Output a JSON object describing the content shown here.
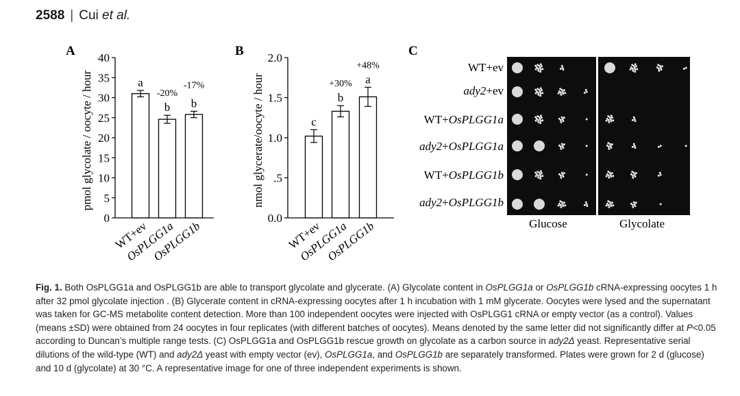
{
  "header": {
    "page_number": "2588",
    "separator": "|",
    "author": "Cui ",
    "etal": "et al."
  },
  "chart_data": [
    {
      "panel": "A",
      "type": "bar",
      "categories": [
        "WT+ev",
        "OsPLGG1a",
        "OsPLGG1b"
      ],
      "values": [
        31.0,
        24.6,
        25.8
      ],
      "errors": [
        0.8,
        1.0,
        0.8
      ],
      "letters": [
        "a",
        "b",
        "b"
      ],
      "percent_labels": [
        "",
        "-20%",
        "-17%"
      ],
      "ylabel": "pmol glycolate / oocyte / hour",
      "ylim": [
        0,
        40
      ],
      "yticks": [
        "0",
        "5",
        "10",
        "15",
        "20",
        "25",
        "30",
        "35",
        "40"
      ]
    },
    {
      "panel": "B",
      "type": "bar",
      "categories": [
        "WT+ev",
        "OsPLGG1a",
        "OsPLGG1b"
      ],
      "values": [
        1.02,
        1.33,
        1.51
      ],
      "errors": [
        0.08,
        0.07,
        0.12
      ],
      "letters": [
        "c",
        "b",
        "a"
      ],
      "percent_labels": [
        "",
        "+30%",
        "+48%"
      ],
      "ylabel": "nmol glycerate/oocyte / hour",
      "ylim": [
        0,
        2.0
      ],
      "yticks": [
        "0.0",
        ".5",
        "1.0",
        "1.5",
        "2.0"
      ]
    }
  ],
  "panel_c": {
    "label": "C",
    "rows": [
      {
        "pre": "WT+ev",
        "it": ""
      },
      {
        "pre": "",
        "it": "ady2",
        "post": "+ev"
      },
      {
        "pre": "WT+",
        "it": "OsPLGG1a"
      },
      {
        "pre": "",
        "it": "ady2",
        "post": "+",
        "it2": "OsPLGG1a"
      },
      {
        "pre": "WT+",
        "it": "OsPLGG1b"
      },
      {
        "pre": "",
        "it": "ady2",
        "post": "+",
        "it2": "OsPLGG1b"
      }
    ],
    "row_labels": [
      "WT+ev",
      "ady2+ev",
      "WT+OsPLGG1a",
      "ady2+OsPLGG1a",
      "WT+OsPLGG1b",
      "ady2+OsPLGG1b"
    ],
    "plates": [
      "Glucose",
      "Glycolate"
    ]
  },
  "caption": {
    "fig_label": "Fig. 1.",
    "s1": " Both OsPLGG1a and OsPLGG1b are able to transport glycolate and glycerate. (A) Glycolate content in ",
    "i1": "OsPLGG1a",
    "s2": " or ",
    "i2": "OsPLGG1b",
    "s3": " cRNA-expressing oocytes 1 h after 32 pmol glycolate injection . (B) Glycerate content in cRNA-expressing oocytes after 1 h incubation with 1 mM glycerate. Oocytes were lysed and the supernatant was taken for GC-MS metabolite content detection. More than 100 independent oocytes were injected with OsPLGG1 cRNA or empty vector (as a control). Values (means ±SD) were obtained from 24 oocytes in four replicates (with different batches of oocytes). Means denoted by the same letter did not significantly differ at ",
    "i3": "P",
    "s4": "<0.05 according to Duncan’s multiple range tests. (C) OsPLGG1a and OsPLGG1b rescue growth on glycolate as a carbon source in ",
    "i4": "ady2Δ",
    "s5": " yeast. Representative serial dilutions of the wild-type (WT) and ",
    "i5": "ady2Δ",
    "s6": " yeast with empty vector (ev), ",
    "i6": "OsPLGG1a",
    "s7": ", and ",
    "i7": "OsPLGG1b",
    "s8": " are separately transformed. Plates were grown for 2 d (glucose) and 10 d (glycolate) at 30 °C. A representative image for one of three independent experiments is shown."
  }
}
